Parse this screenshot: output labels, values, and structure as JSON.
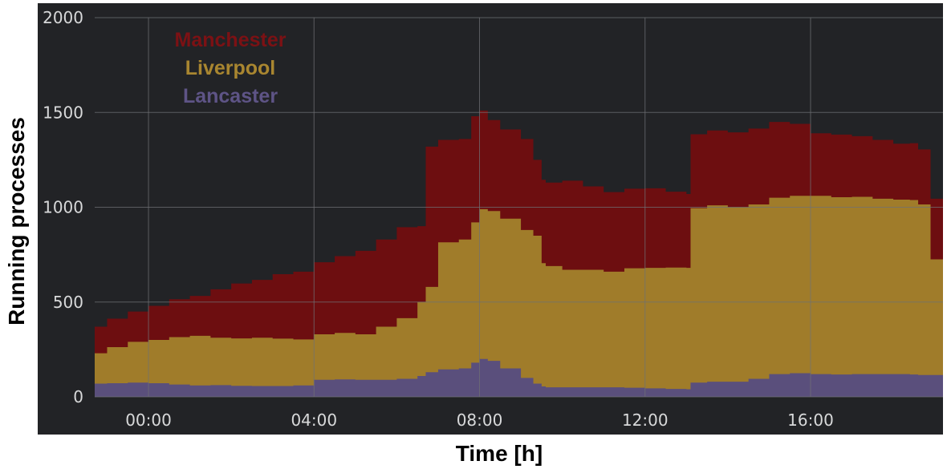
{
  "chart_data": {
    "type": "area",
    "stacked": true,
    "xlabel": "Time [h]",
    "ylabel": "Running processes",
    "ylim": [
      0,
      2000
    ],
    "xlim": [
      -1.3,
      19.2
    ],
    "x_ticks": [
      {
        "value": 0,
        "label": "00:00"
      },
      {
        "value": 4,
        "label": "04:00"
      },
      {
        "value": 8,
        "label": "08:00"
      },
      {
        "value": 12,
        "label": "12:00"
      },
      {
        "value": 16,
        "label": "16:00"
      }
    ],
    "y_ticks": [
      {
        "value": 0,
        "label": "0"
      },
      {
        "value": 500,
        "label": "500"
      },
      {
        "value": 1000,
        "label": "1000"
      },
      {
        "value": 1500,
        "label": "1500"
      },
      {
        "value": 2000,
        "label": "2000"
      }
    ],
    "grid": true,
    "legend_position": "top-left",
    "x": [
      -1.3,
      -1.0,
      -0.5,
      0.0,
      0.5,
      1.0,
      1.5,
      2.0,
      2.5,
      3.0,
      3.5,
      4.0,
      4.5,
      5.0,
      5.5,
      6.0,
      6.5,
      6.7,
      7.0,
      7.5,
      7.8,
      8.0,
      8.2,
      8.5,
      9.0,
      9.3,
      9.5,
      9.6,
      10.0,
      10.5,
      11.0,
      11.5,
      12.0,
      12.5,
      13.0,
      13.1,
      13.5,
      14.0,
      14.5,
      15.0,
      15.5,
      16.0,
      16.5,
      17.0,
      17.5,
      18.0,
      18.4,
      18.6,
      18.9,
      19.2
    ],
    "series": [
      {
        "name": "Lancaster",
        "color": "#5a4f7c",
        "values": [
          70,
          72,
          75,
          72,
          65,
          60,
          62,
          58,
          57,
          57,
          60,
          90,
          92,
          90,
          90,
          95,
          110,
          130,
          145,
          150,
          180,
          200,
          190,
          150,
          100,
          70,
          55,
          50,
          50,
          50,
          50,
          48,
          45,
          42,
          40,
          75,
          80,
          80,
          95,
          120,
          125,
          120,
          118,
          120,
          120,
          120,
          118,
          115,
          115,
          115
        ]
      },
      {
        "name": "Liverpool",
        "color": "#a07c2a",
        "values": [
          160,
          190,
          215,
          228,
          250,
          262,
          250,
          250,
          255,
          250,
          243,
          240,
          245,
          240,
          280,
          320,
          390,
          450,
          670,
          680,
          740,
          790,
          790,
          790,
          780,
          780,
          650,
          640,
          620,
          620,
          610,
          630,
          635,
          640,
          640,
          920,
          930,
          920,
          920,
          930,
          935,
          940,
          935,
          935,
          925,
          920,
          920,
          900,
          610,
          610
        ]
      },
      {
        "name": "Manchester",
        "color": "#6d0e10",
        "values": [
          140,
          150,
          160,
          180,
          200,
          210,
          255,
          290,
          305,
          340,
          357,
          380,
          405,
          440,
          460,
          480,
          400,
          740,
          540,
          530,
          560,
          520,
          480,
          470,
          480,
          400,
          440,
          440,
          470,
          440,
          420,
          420,
          420,
          400,
          390,
          390,
          395,
          395,
          400,
          400,
          380,
          330,
          330,
          320,
          310,
          295,
          300,
          290,
          320,
          320
        ]
      }
    ]
  }
}
